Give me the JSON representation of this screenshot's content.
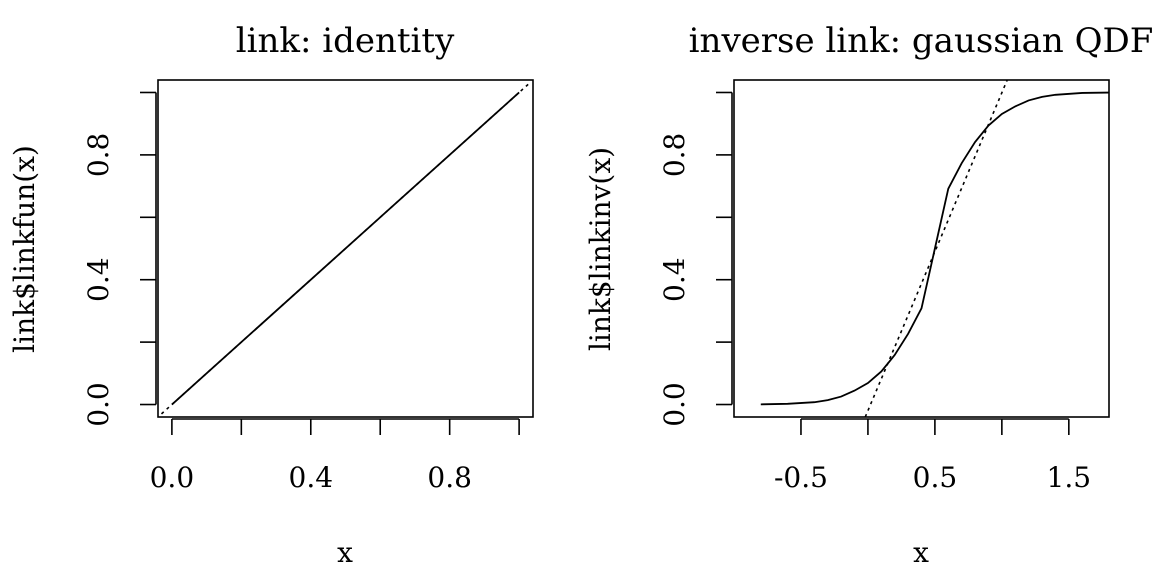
{
  "chart_data": [
    {
      "type": "line",
      "title": "link: identity",
      "xlabel": "x",
      "ylabel": "link$linkfun(x)",
      "xlim": [
        -0.04,
        1.04
      ],
      "ylim": [
        -0.04,
        1.04
      ],
      "x_ticks": [
        0.0,
        0.2,
        0.4,
        0.6,
        0.8,
        1.0
      ],
      "x_tick_labels": [
        "0.0",
        "",
        "0.4",
        "",
        "0.8",
        ""
      ],
      "y_ticks": [
        0.0,
        0.2,
        0.4,
        0.6,
        0.8,
        1.0
      ],
      "y_tick_labels": [
        "0.0",
        "",
        "0.4",
        "",
        "0.8",
        ""
      ],
      "series": [
        {
          "style": "solid",
          "x": [
            0.0,
            1.0
          ],
          "y": [
            0.0,
            1.0
          ]
        },
        {
          "style": "dotted",
          "x": [
            -0.03,
            1.03
          ],
          "y": [
            -0.03,
            1.03
          ]
        }
      ]
    },
    {
      "type": "line",
      "title": "inverse link: gaussian QDF",
      "xlabel": "x",
      "ylabel": "link$linkinv(x)",
      "xlim": [
        -1.0,
        1.8
      ],
      "ylim": [
        -0.04,
        1.04
      ],
      "x_ticks": [
        -0.5,
        0.0,
        0.5,
        1.0,
        1.5
      ],
      "x_tick_labels": [
        "-0.5",
        "",
        "0.5",
        "",
        "1.5"
      ],
      "y_ticks": [
        0.0,
        0.2,
        0.4,
        0.6,
        0.8,
        1.0
      ],
      "y_tick_labels": [
        "0.0",
        "",
        "0.4",
        "",
        "0.8",
        ""
      ],
      "series": [
        {
          "style": "solid",
          "x": [
            -0.8,
            -0.6,
            -0.4,
            -0.3,
            -0.2,
            -0.1,
            0.0,
            0.1,
            0.2,
            0.3,
            0.4,
            0.5,
            0.6,
            0.7,
            0.8,
            0.9,
            1.0,
            1.1,
            1.2,
            1.3,
            1.4,
            1.6,
            1.8
          ],
          "y": [
            0.0005,
            0.0022,
            0.0074,
            0.0141,
            0.0255,
            0.0446,
            0.0688,
            0.1059,
            0.1587,
            0.2266,
            0.3085,
            0.5,
            0.6915,
            0.7734,
            0.8413,
            0.8941,
            0.9312,
            0.9554,
            0.9745,
            0.9859,
            0.9926,
            0.9985,
            0.9997
          ]
        },
        {
          "style": "dotted",
          "x": [
            -0.02,
            1.04
          ],
          "y": [
            -0.04,
            1.04
          ]
        }
      ]
    }
  ]
}
